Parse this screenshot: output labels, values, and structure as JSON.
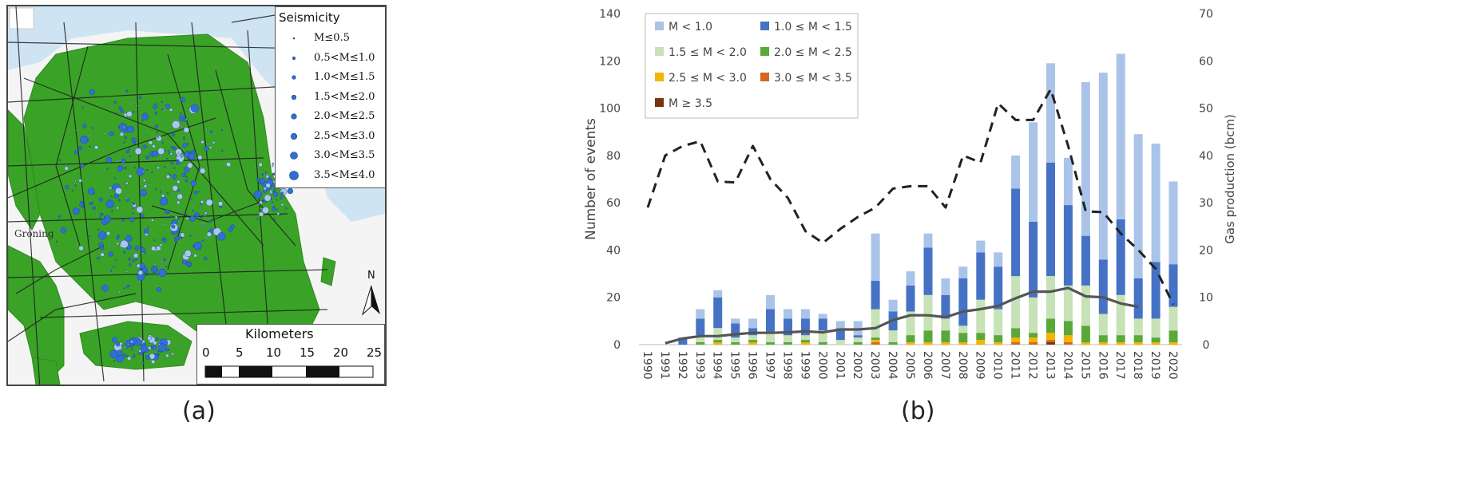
{
  "captions": {
    "a": "(a)",
    "b": "(b)"
  },
  "map": {
    "legend_title": "Seismicity",
    "legend_items": [
      "M≤0.5",
      "0.5<M≤1.0",
      "1.0<M≤1.5",
      "1.5<M≤2.0",
      "2.0<M≤2.5",
      "2.5<M≤3.0",
      "3.0<M≤3.5",
      "3.5<M≤4.0"
    ],
    "place_label": "Groning",
    "north_label": "N",
    "scale_title": "Kilometers",
    "scale_ticks": [
      "0",
      "5",
      "10",
      "15",
      "20",
      "25"
    ],
    "colors": {
      "field": "#3aa327",
      "water": "#cfe4f2",
      "land": "#f4f4f4",
      "roads": "#222222",
      "quake": "#2f6fd6",
      "quake_light": "#a9c6ee"
    }
  },
  "chart_data": {
    "type": "bar",
    "stacked": true,
    "categories": [
      "1990",
      "1991",
      "1992",
      "1993",
      "1994",
      "1995",
      "1996",
      "1997",
      "1998",
      "1999",
      "2000",
      "2001",
      "2002",
      "2003",
      "2004",
      "2005",
      "2006",
      "2007",
      "2008",
      "2009",
      "2010",
      "2011",
      "2012",
      "2013",
      "2014",
      "2015",
      "2016",
      "2017",
      "2018",
      "2019",
      "2020"
    ],
    "ylabel": "Number of events",
    "y2label": "Gas production (bcm)",
    "ylim": [
      0,
      140
    ],
    "y2lim": [
      0,
      70
    ],
    "yticks": [
      "0",
      "20",
      "40",
      "60",
      "80",
      "100",
      "120",
      "140"
    ],
    "y2ticks": [
      "0",
      "10",
      "20",
      "30",
      "40",
      "50",
      "60",
      "70"
    ],
    "legend_position": "top-left",
    "series": [
      {
        "name": "M ≥ 3.5",
        "color": "#7a3410",
        "values": [
          0,
          0,
          0,
          0,
          0,
          0,
          0,
          0,
          0,
          0,
          0,
          0,
          0,
          0,
          0,
          0,
          0,
          0,
          0,
          0,
          0,
          0,
          0,
          1,
          0,
          0,
          0,
          0,
          0,
          0,
          0
        ]
      },
      {
        "name": "3.0 ≤ M < 3.5",
        "color": "#d2691e",
        "values": [
          0,
          0,
          0,
          0,
          0,
          0,
          0,
          0,
          0,
          0,
          0,
          0,
          0,
          1,
          0,
          0,
          0,
          0,
          0,
          0,
          0,
          1,
          1,
          1,
          1,
          0,
          0,
          0,
          0,
          0,
          0
        ]
      },
      {
        "name": "2.5 ≤ M < 3.0",
        "color": "#f4b400",
        "values": [
          0,
          0,
          0,
          0,
          1,
          0,
          1,
          0,
          0,
          1,
          0,
          0,
          0,
          1,
          0,
          1,
          1,
          1,
          1,
          2,
          1,
          2,
          2,
          3,
          3,
          1,
          1,
          1,
          1,
          1,
          1
        ]
      },
      {
        "name": "2.0 ≤ M < 2.5",
        "color": "#5aa83a",
        "values": [
          0,
          0,
          0,
          1,
          1,
          1,
          1,
          1,
          1,
          1,
          1,
          0,
          1,
          1,
          1,
          3,
          5,
          5,
          4,
          3,
          3,
          4,
          2,
          6,
          6,
          7,
          3,
          3,
          3,
          2,
          5
        ]
      },
      {
        "name": "1.5 ≤ M < 2.0",
        "color": "#c6e2b6",
        "values": [
          0,
          0,
          0,
          3,
          5,
          2,
          2,
          4,
          3,
          2,
          5,
          2,
          2,
          12,
          5,
          10,
          15,
          5,
          3,
          14,
          11,
          22,
          15,
          18,
          15,
          17,
          9,
          17,
          7,
          8,
          10
        ]
      },
      {
        "name": "1.0 ≤ M < 1.5",
        "color": "#4572c4",
        "values": [
          0,
          0,
          3,
          7,
          13,
          6,
          3,
          10,
          7,
          7,
          5,
          5,
          1,
          12,
          8,
          11,
          20,
          10,
          20,
          20,
          18,
          37,
          32,
          48,
          34,
          21,
          23,
          32,
          17,
          24,
          18
        ]
      },
      {
        "name": "M < 1.0",
        "color": "#a9c4e8",
        "values": [
          0,
          0,
          0,
          4,
          3,
          2,
          4,
          6,
          4,
          4,
          2,
          3,
          6,
          20,
          5,
          6,
          6,
          7,
          5,
          5,
          6,
          14,
          42,
          42,
          20,
          65,
          79,
          70,
          61,
          50,
          35
        ]
      }
    ],
    "legend_order": [
      "M < 1.0",
      "1.0 ≤ M < 1.5",
      "1.5 ≤ M < 2.0",
      "2.0 ≤ M < 2.5",
      "2.5 ≤ M < 3.0",
      "3.0 ≤ M < 3.5",
      "M ≥ 3.5"
    ],
    "lines": [
      {
        "axis": "right",
        "style": "dashed",
        "color": "#222222",
        "x": [
          "1990",
          "1991",
          "1992",
          "1993",
          "1994",
          "1995",
          "1996",
          "1997",
          "1998",
          "1999",
          "2000",
          "2001",
          "2002",
          "2003",
          "2004",
          "2005",
          "2006",
          "2007",
          "2008",
          "2009",
          "2010",
          "2011",
          "2012",
          "2013",
          "2014",
          "2015",
          "2016",
          "2017",
          "2018",
          "2019",
          "2020"
        ],
        "values": [
          29,
          40,
          42,
          43,
          34.5,
          34.3,
          42,
          35,
          31,
          24,
          21.5,
          24.5,
          27,
          29,
          33,
          33.5,
          33.5,
          29,
          40,
          38.5,
          51,
          47.5,
          47.5,
          54,
          42,
          28.2,
          28,
          23.5,
          20,
          16,
          8.5
        ]
      },
      {
        "axis": "right",
        "style": "solid",
        "color": "#555555",
        "x": [
          "1991",
          "1992",
          "1993",
          "1994",
          "1995",
          "1996",
          "1997",
          "1998",
          "1999",
          "2000",
          "2001",
          "2002",
          "2003",
          "2004",
          "2005",
          "2006",
          "2007",
          "2008",
          "2009",
          "2010",
          "2011",
          "2012",
          "2013",
          "2014",
          "2015",
          "2016",
          "2017",
          "2018"
        ],
        "values": [
          0.3,
          1.3,
          1.8,
          1.8,
          2.2,
          2.5,
          2.5,
          2.6,
          2.8,
          2.6,
          3.2,
          3.2,
          3.5,
          5.2,
          6.2,
          6.2,
          5.8,
          7,
          7.5,
          8.2,
          9.8,
          11.2,
          11.2,
          12,
          10.2,
          10,
          8.7,
          8
        ]
      }
    ]
  }
}
